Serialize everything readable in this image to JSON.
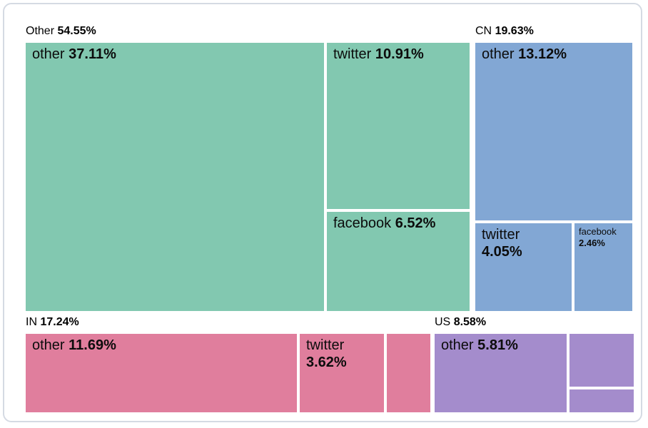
{
  "chart_data": {
    "type": "treemap",
    "title": "",
    "legend": "none",
    "value_format": "percent",
    "groups": [
      {
        "name": "Other",
        "pct": "54.55%",
        "value": 54.55,
        "color": "#82c8b0",
        "children": [
          {
            "name": "other",
            "pct": "37.11%",
            "value": 37.11
          },
          {
            "name": "twitter",
            "pct": "10.91%",
            "value": 10.91
          },
          {
            "name": "facebook",
            "pct": "6.52%",
            "value": 6.52
          }
        ]
      },
      {
        "name": "CN",
        "pct": "19.63%",
        "value": 19.63,
        "color": "#82a7d4",
        "children": [
          {
            "name": "other",
            "pct": "13.12%",
            "value": 13.12
          },
          {
            "name": "twitter",
            "pct": "4.05%",
            "value": 4.05
          },
          {
            "name": "facebook",
            "pct": "2.46%",
            "value": 2.46
          }
        ]
      },
      {
        "name": "IN",
        "pct": "17.24%",
        "value": 17.24,
        "color": "#e07e9d",
        "children": [
          {
            "name": "other",
            "pct": "11.69%",
            "value": 11.69
          },
          {
            "name": "twitter",
            "pct": "3.62%",
            "value": 3.62
          },
          {
            "name": "",
            "pct": "",
            "value": 1.93,
            "label_visible": false,
            "estimated": true
          }
        ]
      },
      {
        "name": "US",
        "pct": "8.58%",
        "value": 8.58,
        "color": "#a48ccc",
        "children": [
          {
            "name": "other",
            "pct": "5.81%",
            "value": 5.81
          },
          {
            "name": "",
            "pct": "",
            "value": 1.93,
            "label_visible": false,
            "estimated": true
          },
          {
            "name": "",
            "pct": "",
            "value": 0.84,
            "label_visible": false,
            "estimated": true
          }
        ]
      }
    ]
  }
}
